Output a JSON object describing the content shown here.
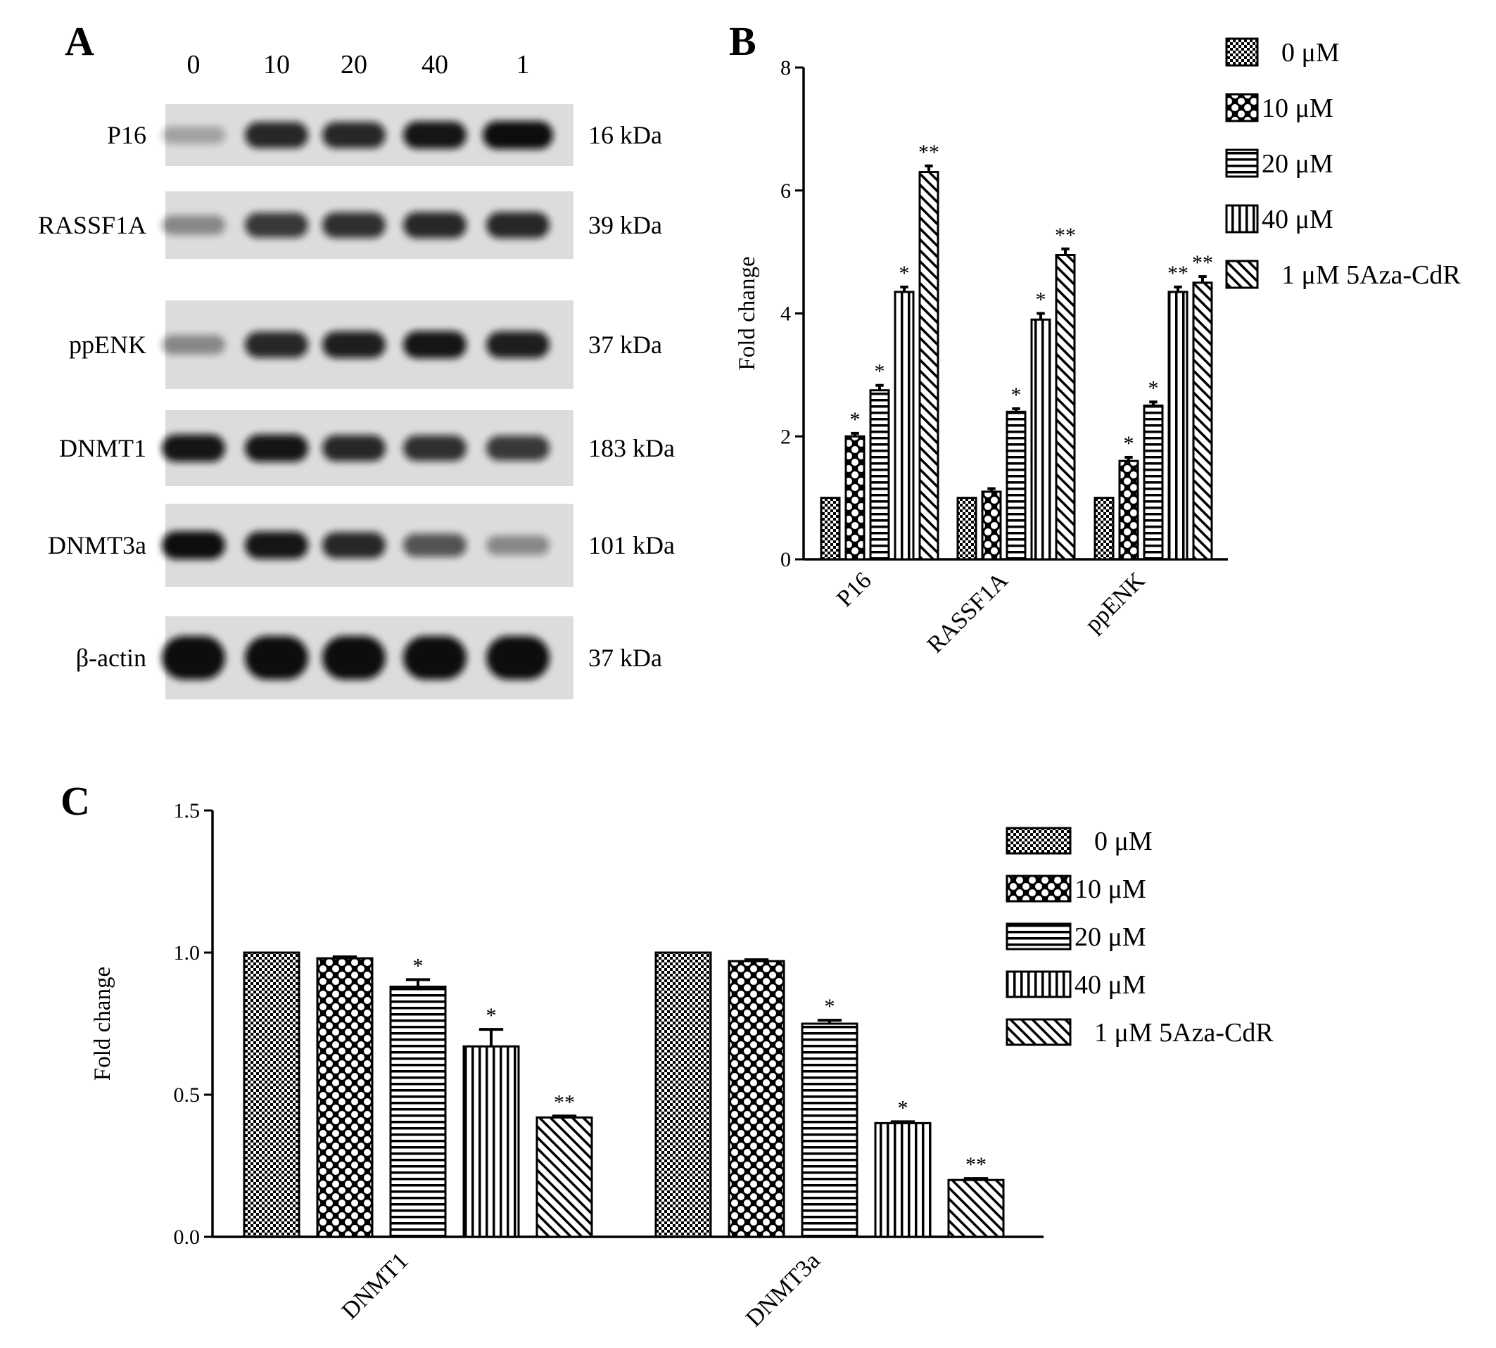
{
  "colors": {
    "ink": "#000000",
    "background": "#ffffff",
    "membrane": "#dcdcdc",
    "band": "#111111"
  },
  "panel_A": {
    "letter": "A",
    "lane_labels": [
      "0",
      "10",
      "20",
      "40",
      "1"
    ],
    "blots": [
      {
        "protein": "P16",
        "size": "16 kDa",
        "intensity": [
          0.15,
          0.85,
          0.85,
          0.95,
          1.0
        ]
      },
      {
        "protein": "RASSF1A",
        "size": "39 kDa",
        "intensity": [
          0.3,
          0.75,
          0.8,
          0.85,
          0.85
        ]
      },
      {
        "protein": "ppENK",
        "size": "37 kDa",
        "intensity": [
          0.3,
          0.85,
          0.9,
          0.95,
          0.9
        ]
      },
      {
        "protein": "DNMT1",
        "size": "183 kDa",
        "intensity": [
          0.95,
          0.95,
          0.85,
          0.8,
          0.75
        ]
      },
      {
        "protein": "DNMT3a",
        "size": "101 kDa",
        "intensity": [
          1.0,
          0.95,
          0.85,
          0.6,
          0.3
        ]
      },
      {
        "protein": "β-actin",
        "size": "37 kDa",
        "intensity": [
          1.0,
          1.0,
          1.0,
          1.0,
          1.0
        ]
      }
    ]
  },
  "chart_data": [
    {
      "panel": "B",
      "type": "bar",
      "ylabel": "Fold change",
      "xlabel": "",
      "ylim": [
        0,
        8
      ],
      "yticks": [
        "0",
        "2",
        "4",
        "6",
        "8"
      ],
      "categories": [
        "P16",
        "RASSF1A",
        "ppENK"
      ],
      "legend_position": "top-right",
      "series": [
        {
          "name": "0 μM",
          "pattern": "checker",
          "values": [
            1.0,
            1.0,
            1.0
          ],
          "errors": [
            0,
            0,
            0
          ],
          "sig": [
            "",
            "",
            ""
          ]
        },
        {
          "name": "10 μM",
          "pattern": "diamond",
          "values": [
            2.0,
            1.1,
            1.6
          ],
          "errors": [
            0.05,
            0.05,
            0.06
          ],
          "sig": [
            "*",
            "",
            "*"
          ]
        },
        {
          "name": "20 μM",
          "pattern": "hlines",
          "values": [
            2.75,
            2.4,
            2.5
          ],
          "errors": [
            0.08,
            0.05,
            0.06
          ],
          "sig": [
            "*",
            "*",
            "*"
          ]
        },
        {
          "name": "40 μM",
          "pattern": "vlines",
          "values": [
            4.35,
            3.9,
            4.35
          ],
          "errors": [
            0.08,
            0.1,
            0.08
          ],
          "sig": [
            "*",
            "*",
            "**"
          ]
        },
        {
          "name": "1 μM 5Aza-CdR",
          "pattern": "diag",
          "values": [
            6.3,
            4.95,
            4.5
          ],
          "errors": [
            0.1,
            0.1,
            0.1
          ],
          "sig": [
            "**",
            "**",
            "**"
          ]
        }
      ]
    },
    {
      "panel": "C",
      "type": "bar",
      "ylabel": "Fold change",
      "xlabel": "",
      "ylim": [
        0,
        1.5
      ],
      "yticks": [
        "0.0",
        "0.5",
        "1.0",
        "1.5"
      ],
      "categories": [
        "DNMT1",
        "DNMT3a"
      ],
      "legend_position": "right",
      "series": [
        {
          "name": "0 μM",
          "pattern": "checker",
          "values": [
            1.0,
            1.0
          ],
          "errors": [
            0,
            0
          ],
          "sig": [
            "",
            ""
          ]
        },
        {
          "name": "10 μM",
          "pattern": "diamond",
          "values": [
            0.98,
            0.97
          ],
          "errors": [
            0.005,
            0.005
          ],
          "sig": [
            "",
            ""
          ]
        },
        {
          "name": "20 μM",
          "pattern": "hlines",
          "values": [
            0.88,
            0.75
          ],
          "errors": [
            0.025,
            0.012
          ],
          "sig": [
            "*",
            "*"
          ]
        },
        {
          "name": "40 μM",
          "pattern": "vlines",
          "values": [
            0.67,
            0.4
          ],
          "errors": [
            0.06,
            0.005
          ],
          "sig": [
            "*",
            "*"
          ]
        },
        {
          "name": "1 μM 5Aza-CdR",
          "pattern": "diag",
          "values": [
            0.42,
            0.2
          ],
          "errors": [
            0.005,
            0.005
          ],
          "sig": [
            "**",
            "**"
          ]
        }
      ]
    }
  ]
}
